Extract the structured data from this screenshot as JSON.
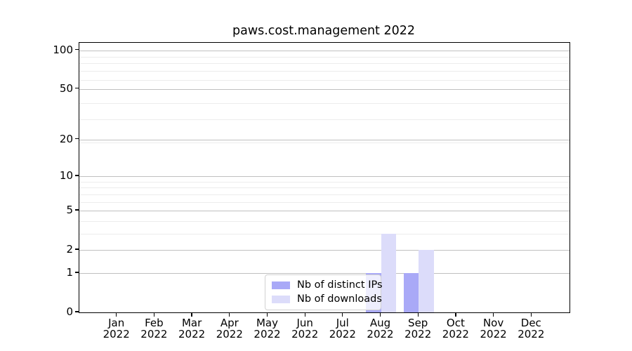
{
  "chart_data": {
    "type": "bar",
    "title": "paws.cost.management 2022",
    "categories": [
      "Jan 2022",
      "Feb 2022",
      "Mar 2022",
      "Apr 2022",
      "May 2022",
      "Jun 2022",
      "Jul 2022",
      "Aug 2022",
      "Sep 2022",
      "Oct 2022",
      "Nov 2022",
      "Dec 2022"
    ],
    "series": [
      {
        "name": "Nb of distinct IPs",
        "color": "#a9a9f7",
        "values": [
          0,
          0,
          0,
          0,
          0,
          0,
          0,
          1,
          1,
          0,
          0,
          0
        ]
      },
      {
        "name": "Nb of downloads",
        "color": "#dcdcfa",
        "values": [
          0,
          0,
          0,
          0,
          0,
          0,
          0,
          3,
          2,
          0,
          0,
          0
        ]
      }
    ],
    "yscale": "log(1+x)",
    "ylim": [
      0,
      114
    ],
    "yticks": [
      0,
      1,
      2,
      5,
      10,
      20,
      50,
      100
    ],
    "y_minor_ticks": [
      3,
      4,
      6,
      7,
      8,
      9,
      19,
      29,
      39,
      59,
      69,
      79,
      89
    ],
    "grid": "horizontal",
    "legend": {
      "position": "lower center"
    },
    "colors": {
      "axis": "#000000",
      "grid_major": "#c0c0c0",
      "grid_minor": "#ececec",
      "background": "#ffffff"
    }
  }
}
